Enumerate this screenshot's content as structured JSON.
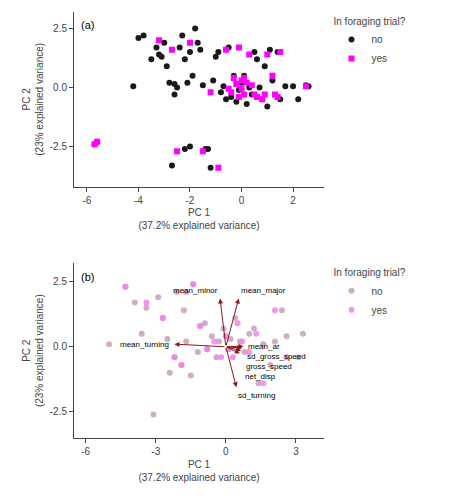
{
  "chart_data": [
    {
      "type": "scatter",
      "xlabel": "PC 1\n(37.2% explained variance)",
      "ylabel": "PC 2\n(23% explained variance)",
      "xlim": [
        -6.5,
        3.2
      ],
      "ylim": [
        -4.2,
        3.2
      ],
      "xticks": [
        -6,
        -4,
        -2,
        0,
        2
      ],
      "yticks": [
        -2.5,
        {
          "value": 0.0,
          "label": "0.0"
        },
        2.5
      ],
      "grid": false,
      "legend": "right",
      "legend_title": "In foraging trial?",
      "annotations": [
        {
          "text": "(a)"
        }
      ],
      "series": [
        {
          "name": "no",
          "color": "#1a1a1a",
          "marker": "circle",
          "x": [
            -5.7,
            -5.6,
            -4.2,
            -4.0,
            -3.8,
            -3.5,
            -3.3,
            -3.2,
            -3.1,
            -3.0,
            -2.9,
            -2.8,
            -2.7,
            -2.6,
            -2.6,
            -2.5,
            -2.4,
            -2.3,
            -2.2,
            -2.2,
            -2.1,
            -2.0,
            -2.0,
            -1.9,
            -1.8,
            -1.7,
            -1.6,
            -1.5,
            -1.4,
            -1.3,
            -1.2,
            -1.1,
            -1.0,
            -0.9,
            -0.8,
            -0.7,
            -0.6,
            -0.5,
            -0.4,
            -0.3,
            -0.2,
            -0.1,
            0.0,
            0.1,
            0.2,
            0.3,
            0.4,
            0.5,
            0.6,
            0.7,
            0.8,
            0.9,
            1.0,
            1.1,
            1.2,
            1.4,
            1.5,
            1.7,
            2.0,
            2.2,
            2.5,
            2.6
          ],
          "values": [
            -2.4,
            -2.3,
            0.05,
            2.1,
            2.2,
            1.2,
            1.7,
            1.4,
            1.3,
            1.9,
            0.9,
            0.2,
            -3.3,
            0.15,
            -0.3,
            0.0,
            1.7,
            2.2,
            -2.6,
            1.2,
            0.2,
            -2.5,
            1.5,
            0.5,
            2.5,
            1.9,
            1.6,
            0.1,
            -2.6,
            -2.6,
            -3.4,
            0.3,
            1.3,
            1.5,
            -0.2,
            0.05,
            -0.5,
            1.7,
            -0.4,
            0.5,
            -0.6,
            -0.1,
            0.2,
            0.5,
            -0.7,
            0.0,
            -0.3,
            1.5,
            1.2,
            0.0,
            -0.5,
            0.9,
            -0.8,
            1.6,
            0.3,
            1.5,
            -0.5,
            0.05,
            0.05,
            -0.5,
            0.1,
            0.05
          ]
        },
        {
          "name": "yes",
          "color": "#FF00FF",
          "marker": "square",
          "x": [
            -5.7,
            -5.6,
            -3.2,
            -2.7,
            -2.5,
            -2.0,
            -1.5,
            -1.2,
            -0.9,
            -0.6,
            -0.5,
            -0.4,
            -0.3,
            -0.2,
            -0.1,
            -0.1,
            0.0,
            0.0,
            0.1,
            0.1,
            0.2,
            0.3,
            0.4,
            0.5,
            0.6,
            0.8,
            0.9,
            1.0,
            1.2,
            1.3,
            1.4,
            1.5,
            2.5
          ],
          "values": [
            -2.4,
            -2.3,
            2.0,
            1.6,
            -2.7,
            1.9,
            -2.7,
            -0.2,
            -3.4,
            1.6,
            -0.05,
            -0.2,
            0.4,
            0.15,
            1.7,
            -0.4,
            -0.05,
            0.3,
            0.4,
            -0.3,
            0.2,
            1.4,
            0.1,
            -0.3,
            -0.4,
            -0.5,
            -0.3,
            1.4,
            0.5,
            -0.3,
            -0.4,
            1.5,
            0.05
          ]
        }
      ]
    },
    {
      "type": "scatter",
      "xlabel": "PC 1\n(37.2% explained variance)",
      "ylabel": "PC 2\n(23% explained variance)",
      "xlim": [
        -6.5,
        4.2
      ],
      "ylim": [
        -3.5,
        3.2
      ],
      "xticks": [
        -6,
        -3,
        0,
        3
      ],
      "yticks": [
        -2.5,
        {
          "value": 0.0,
          "label": "0.0"
        },
        2.5
      ],
      "grid": false,
      "legend": "right",
      "legend_title": "In foraging trial?",
      "annotations": [
        {
          "text": "(b)"
        }
      ],
      "series": [
        {
          "name": "no",
          "color": "#C8A0B8",
          "marker": "circle",
          "x": [
            -5.0,
            -4.3,
            -3.9,
            -3.6,
            -3.4,
            -3.1,
            -2.9,
            -2.7,
            -2.5,
            -2.4,
            -2.2,
            -2.1,
            -1.9,
            -1.8,
            -1.7,
            -1.5,
            -1.4,
            -1.2,
            -1.1,
            -0.9,
            -0.8,
            -0.6,
            -0.4,
            -0.3,
            -0.1,
            0.0,
            0.1,
            0.2,
            0.4,
            0.6,
            0.8,
            1.0,
            1.2,
            1.4,
            1.6,
            1.9,
            2.1,
            2.4,
            2.6,
            3.1,
            3.3
          ],
          "values": [
            0.1,
            2.3,
            1.7,
            0.5,
            1.5,
            -2.6,
            1.9,
            1.1,
            0.3,
            -1.0,
            -0.4,
            2.1,
            -0.7,
            1.4,
            0.2,
            -1.1,
            2.4,
            -0.2,
            0.8,
            0.9,
            -0.1,
            0.4,
            -0.4,
            0.2,
            0.7,
            0.4,
            -0.1,
            0.3,
            1.1,
            0.2,
            -0.2,
            0.5,
            0.7,
            -1.4,
            0.1,
            -0.7,
            0.2,
            1.4,
            0.4,
            -0.4,
            0.5
          ]
        },
        {
          "name": "yes",
          "color": "#EE82EE",
          "marker": "circle",
          "x": [
            -4.3,
            -3.4,
            -2.7,
            -2.2,
            -1.9,
            -1.7,
            -1.4,
            -1.1,
            -0.8,
            -0.5,
            -0.2,
            0.0,
            0.1,
            0.3,
            0.5,
            0.7,
            1.0,
            1.3,
            1.6,
            2.1,
            2.6
          ],
          "values": [
            2.3,
            1.7,
            1.1,
            -0.4,
            -0.7,
            2.1,
            2.4,
            0.8,
            -0.1,
            0.2,
            -0.4,
            0.4,
            -0.1,
            -0.4,
            0.9,
            0.2,
            -0.2,
            0.5,
            -1.4,
            1.4,
            -0.4
          ]
        }
      ],
      "arrows": [
        {
          "label": "mean_minor",
          "x": -0.25,
          "y": 1.85,
          "color": "#8B1A1A"
        },
        {
          "label": "mean_major",
          "x": 0.55,
          "y": 1.85,
          "color": "#8B1A1A"
        },
        {
          "label": "mean_turning",
          "x": -2.2,
          "y": 0.1,
          "color": "#8B1A1A"
        },
        {
          "label": "mean_ar",
          "x": 0.75,
          "y": 0.02,
          "color": "#8B1A1A"
        },
        {
          "label": "sd_gross_speed",
          "x": 0.7,
          "y": -0.05,
          "color": "#8B1A1A"
        },
        {
          "label": "gross_speed",
          "x": 0.65,
          "y": -0.15,
          "color": "#8B1A1A"
        },
        {
          "label": "net_disp",
          "x": 0.6,
          "y": -0.25,
          "color": "#8B1A1A"
        },
        {
          "label": "sd_turning",
          "x": 0.45,
          "y": -1.55,
          "color": "#8B1A1A"
        }
      ]
    }
  ]
}
